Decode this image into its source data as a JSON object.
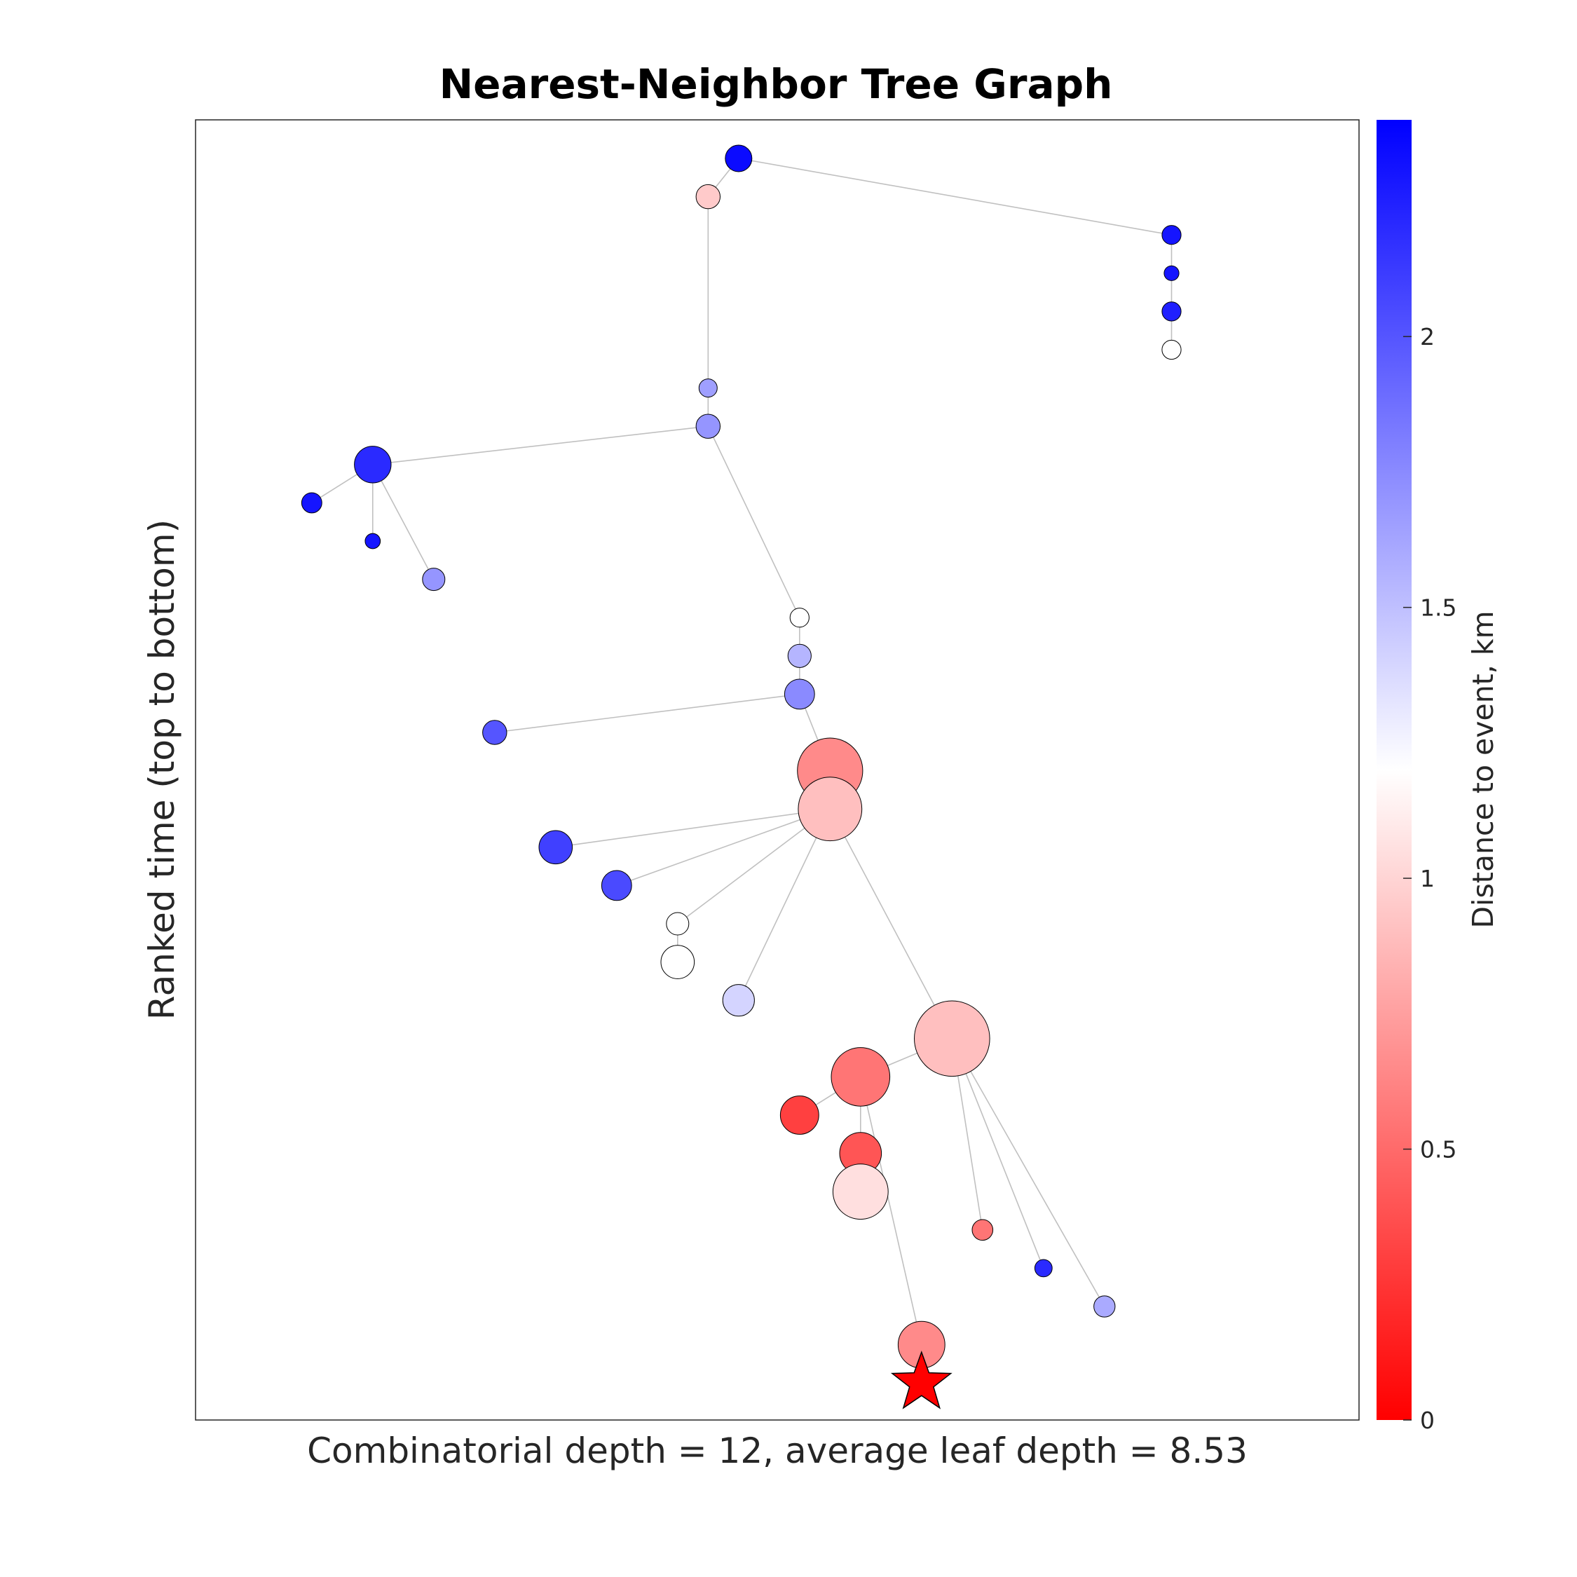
{
  "chart_data": {
    "type": "tree-graph",
    "title": "Nearest-Neighbor Tree Graph",
    "xlabel": "Combinatorial depth = 12, average leaf depth = 8.53",
    "ylabel": "Ranked time (top to bottom)",
    "colorbar": {
      "label": "Distance to event, km",
      "range": [
        0,
        2.4
      ],
      "ticks": [
        0,
        0.5,
        1,
        1.5,
        2
      ],
      "tick_labels": [
        "0",
        "0.5",
        "1",
        "1.5",
        "2"
      ],
      "colors": {
        "low": "#ff0000",
        "mid": "#ffffff",
        "high": "#0000ff"
      }
    },
    "rank_range": [
      1,
      34
    ],
    "xlim": [
      0,
      17
    ],
    "nodes": [
      {
        "id": 1,
        "x": 8.4,
        "rank": 1,
        "distance": 2.35,
        "size": 1.0
      },
      {
        "id": 2,
        "x": 7.9,
        "rank": 2,
        "distance": 0.95,
        "size": 0.85
      },
      {
        "id": 3,
        "x": 15.5,
        "rank": 3,
        "distance": 2.3,
        "size": 0.55
      },
      {
        "id": 4,
        "x": 15.5,
        "rank": 4,
        "distance": 2.3,
        "size": 0.3
      },
      {
        "id": 5,
        "x": 15.5,
        "rank": 5,
        "distance": 2.25,
        "size": 0.55
      },
      {
        "id": 6,
        "x": 15.5,
        "rank": 6,
        "distance": 1.2,
        "size": 0.55
      },
      {
        "id": 7,
        "x": 7.9,
        "rank": 7,
        "distance": 1.65,
        "size": 0.5
      },
      {
        "id": 8,
        "x": 7.9,
        "rank": 8,
        "distance": 1.7,
        "size": 0.85
      },
      {
        "id": 9,
        "x": 2.4,
        "rank": 9,
        "distance": 2.2,
        "size": 1.6
      },
      {
        "id": 10,
        "x": 1.4,
        "rank": 10,
        "distance": 2.3,
        "size": 0.62
      },
      {
        "id": 11,
        "x": 2.4,
        "rank": 11,
        "distance": 2.3,
        "size": 0.32
      },
      {
        "id": 12,
        "x": 3.4,
        "rank": 12,
        "distance": 1.7,
        "size": 0.75
      },
      {
        "id": 13,
        "x": 9.4,
        "rank": 13,
        "distance": 1.2,
        "size": 0.55
      },
      {
        "id": 14,
        "x": 9.4,
        "rank": 14,
        "distance": 1.55,
        "size": 0.8
      },
      {
        "id": 15,
        "x": 9.4,
        "rank": 15,
        "distance": 1.75,
        "size": 1.2
      },
      {
        "id": 16,
        "x": 4.4,
        "rank": 16,
        "distance": 2.0,
        "size": 0.85
      },
      {
        "id": 17,
        "x": 9.9,
        "rank": 17,
        "distance": 0.65,
        "size": 3.3
      },
      {
        "id": 18,
        "x": 9.9,
        "rank": 18,
        "distance": 0.9,
        "size": 3.2
      },
      {
        "id": 19,
        "x": 5.4,
        "rank": 19,
        "distance": 2.1,
        "size": 1.4
      },
      {
        "id": 20,
        "x": 6.4,
        "rank": 20,
        "distance": 2.05,
        "size": 1.2
      },
      {
        "id": 21,
        "x": 7.4,
        "rank": 21,
        "distance": 1.2,
        "size": 0.75
      },
      {
        "id": 22,
        "x": 7.4,
        "rank": 22,
        "distance": 1.2,
        "size": 1.4
      },
      {
        "id": 23,
        "x": 8.4,
        "rank": 23,
        "distance": 1.4,
        "size": 1.3
      },
      {
        "id": 24,
        "x": 11.9,
        "rank": 24,
        "distance": 0.9,
        "size": 3.9
      },
      {
        "id": 25,
        "x": 10.4,
        "rank": 25,
        "distance": 0.55,
        "size": 2.9
      },
      {
        "id": 26,
        "x": 9.4,
        "rank": 26,
        "distance": 0.3,
        "size": 1.7
      },
      {
        "id": 27,
        "x": 10.4,
        "rank": 27,
        "distance": 0.4,
        "size": 1.9
      },
      {
        "id": 28,
        "x": 10.4,
        "rank": 28,
        "distance": 1.05,
        "size": 2.7
      },
      {
        "id": 29,
        "x": 12.4,
        "rank": 29,
        "distance": 0.55,
        "size": 0.65
      },
      {
        "id": 30,
        "x": 13.4,
        "rank": 30,
        "distance": 2.2,
        "size": 0.45
      },
      {
        "id": 31,
        "x": 14.4,
        "rank": 31,
        "distance": 1.6,
        "size": 0.68
      },
      {
        "id": 32,
        "x": 11.4,
        "rank": 32,
        "distance": 0.65,
        "size": 2.2
      },
      {
        "id": 33,
        "x": 11.4,
        "rank": 33,
        "distance": 0.0,
        "marker": "star"
      }
    ],
    "edges": [
      [
        1,
        2
      ],
      [
        1,
        3
      ],
      [
        3,
        4
      ],
      [
        4,
        5
      ],
      [
        5,
        6
      ],
      [
        2,
        7
      ],
      [
        7,
        8
      ],
      [
        8,
        9
      ],
      [
        9,
        10
      ],
      [
        9,
        11
      ],
      [
        9,
        12
      ],
      [
        8,
        13
      ],
      [
        13,
        14
      ],
      [
        14,
        15
      ],
      [
        15,
        16
      ],
      [
        15,
        17
      ],
      [
        17,
        18
      ],
      [
        18,
        19
      ],
      [
        18,
        20
      ],
      [
        18,
        21
      ],
      [
        21,
        22
      ],
      [
        18,
        23
      ],
      [
        18,
        24
      ],
      [
        24,
        25
      ],
      [
        25,
        26
      ],
      [
        25,
        27
      ],
      [
        27,
        28
      ],
      [
        25,
        32
      ],
      [
        32,
        33
      ],
      [
        24,
        29
      ],
      [
        24,
        30
      ],
      [
        24,
        31
      ]
    ]
  }
}
